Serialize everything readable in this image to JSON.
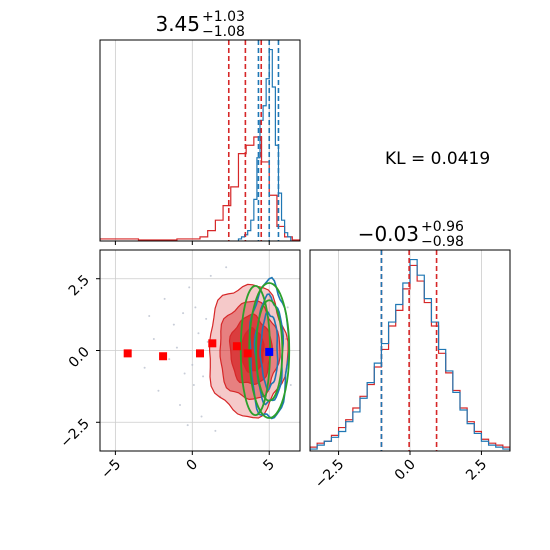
{
  "colors": {
    "red": "#d62728",
    "blue": "#1f77b4",
    "green": "#2ca02c",
    "grid": "#cccccc"
  },
  "annotation": {
    "kl_text": "KL = 0.0419"
  },
  "chart_data": [
    {
      "type": "histogram",
      "panel": "top-left",
      "title": {
        "value": "3.45",
        "upper": "+1.03",
        "lower": "−1.08"
      },
      "xlim": [
        -6,
        7
      ],
      "x_ticks": [
        -5,
        0,
        5
      ],
      "grid": true,
      "quantile_lines": {
        "red": [
          2.37,
          3.45,
          4.48
        ],
        "blue": [
          4.3,
          5.0,
          5.6
        ]
      },
      "series": [
        {
          "color": "red",
          "bin_edges": [
            -6,
            -5.5,
            -5,
            -4.5,
            -4,
            -3.5,
            -3,
            -2.5,
            -2,
            -1.5,
            -1,
            -0.5,
            0,
            0.5,
            1,
            1.5,
            2,
            2.5,
            3,
            3.5,
            4,
            4.5,
            5,
            5.5,
            6,
            6.5,
            7
          ],
          "counts": [
            0.01,
            0.01,
            0.01,
            0.01,
            0.01,
            0.005,
            0.005,
            0.005,
            0.005,
            0.005,
            0.01,
            0.01,
            0.01,
            0.02,
            0.05,
            0.1,
            0.17,
            0.26,
            0.42,
            0.46,
            0.5,
            0.38,
            0.22,
            0.07,
            0.02,
            0.005
          ]
        },
        {
          "color": "blue",
          "bin_edges": [
            3.0,
            3.2,
            3.4,
            3.6,
            3.8,
            4.0,
            4.2,
            4.4,
            4.6,
            4.8,
            5.0,
            5.2,
            5.4,
            5.6,
            5.8,
            6.0,
            6.2,
            6.4
          ],
          "counts": [
            0.01,
            0.02,
            0.03,
            0.05,
            0.1,
            0.2,
            0.4,
            0.58,
            0.65,
            0.78,
            0.92,
            0.74,
            0.46,
            0.23,
            0.1,
            0.04,
            0.02
          ]
        }
      ]
    },
    {
      "type": "histogram",
      "panel": "bottom-right",
      "title": {
        "value": "−0.03",
        "upper": "+0.96",
        "lower": "−0.98"
      },
      "xlim": [
        -3.5,
        3.5
      ],
      "x_ticks": [
        -2.5,
        0.0,
        2.5
      ],
      "x_tick_labels": [
        "−2.5",
        "0.0",
        "2.5"
      ],
      "grid": true,
      "quantile_lines": {
        "red": [
          -1.0,
          -0.03,
          0.93
        ],
        "blue": [
          -1.0
        ]
      },
      "series": [
        {
          "color": "red",
          "bin_edges": [
            -3.5,
            -3.25,
            -3,
            -2.75,
            -2.5,
            -2.25,
            -2,
            -1.75,
            -1.5,
            -1.25,
            -1,
            -0.75,
            -0.5,
            -0.25,
            0,
            0.25,
            0.5,
            0.75,
            1,
            1.25,
            1.5,
            1.75,
            2,
            2.25,
            2.5,
            2.75,
            3,
            3.25,
            3.5
          ],
          "counts": [
            0.02,
            0.04,
            0.05,
            0.08,
            0.12,
            0.16,
            0.22,
            0.28,
            0.34,
            0.43,
            0.52,
            0.64,
            0.72,
            0.83,
            0.95,
            0.87,
            0.76,
            0.64,
            0.5,
            0.4,
            0.31,
            0.22,
            0.15,
            0.1,
            0.06,
            0.04,
            0.03,
            0.02
          ]
        },
        {
          "color": "blue",
          "bin_edges": [
            -3.5,
            -3.25,
            -3,
            -2.75,
            -2.5,
            -2.25,
            -2,
            -1.75,
            -1.5,
            -1.25,
            -1,
            -0.75,
            -0.5,
            -0.25,
            0,
            0.25,
            0.5,
            0.75,
            1,
            1.25,
            1.5,
            1.75,
            2,
            2.25,
            2.5,
            2.75,
            3,
            3.25,
            3.5
          ],
          "counts": [
            0.01,
            0.03,
            0.05,
            0.07,
            0.1,
            0.15,
            0.2,
            0.27,
            0.35,
            0.45,
            0.55,
            0.66,
            0.75,
            0.86,
            0.98,
            0.9,
            0.78,
            0.66,
            0.52,
            0.41,
            0.3,
            0.21,
            0.14,
            0.09,
            0.05,
            0.03,
            0.02,
            0.01
          ]
        }
      ]
    },
    {
      "type": "contour",
      "panel": "bottom-left",
      "xlim": [
        -6,
        7
      ],
      "ylim": [
        -3.5,
        3.5
      ],
      "x_ticks": [
        -5,
        0,
        5
      ],
      "x_tick_labels": [
        "−5",
        "0",
        "5"
      ],
      "y_ticks": [
        -2.5,
        0.0,
        2.5
      ],
      "y_tick_labels": [
        "−2.5",
        "0.0",
        "2.5"
      ],
      "grid": true,
      "red_filled_levels": [
        {
          "cx": 3.6,
          "cy": 0.0,
          "rx": 2.55,
          "ry": 2.3,
          "opacity": 0.25
        },
        {
          "cx": 3.7,
          "cy": 0.0,
          "rx": 1.95,
          "ry": 1.7,
          "opacity": 0.45
        },
        {
          "cx": 3.8,
          "cy": 0.0,
          "rx": 1.35,
          "ry": 1.2,
          "opacity": 0.75
        },
        {
          "cx": 3.9,
          "cy": 0.0,
          "rx": 0.75,
          "ry": 0.75,
          "opacity": 0.9
        }
      ],
      "blue_levels": [
        {
          "cx": 5.0,
          "cy": 0.0,
          "rx": 1.25,
          "ry": 2.4
        },
        {
          "cx": 5.0,
          "cy": 0.0,
          "rx": 0.9,
          "ry": 1.85
        },
        {
          "cx": 5.0,
          "cy": 0.0,
          "rx": 0.55,
          "ry": 1.3
        }
      ],
      "green_ellipses": [
        {
          "cx": 5.0,
          "cy": 0.0,
          "rx": 1.3,
          "ry": 2.35
        },
        {
          "cx": 5.0,
          "cy": 0.0,
          "rx": 0.85,
          "ry": 1.75
        },
        {
          "cx": 4.1,
          "cy": 0.0,
          "rx": 0.95,
          "ry": 2.25
        }
      ],
      "red_squares": [
        {
          "x": -4.2,
          "y": -0.1
        },
        {
          "x": -1.9,
          "y": -0.2
        },
        {
          "x": 0.5,
          "y": -0.1
        },
        {
          "x": 1.3,
          "y": 0.25
        },
        {
          "x": 2.9,
          "y": 0.15
        },
        {
          "x": 3.6,
          "y": -0.1
        }
      ],
      "blue_square": {
        "x": 5.0,
        "y": -0.05
      },
      "scatter_points": [
        [
          -1.2,
          0.9
        ],
        [
          -0.5,
          -0.8
        ],
        [
          0.2,
          1.5
        ],
        [
          -2.5,
          0.4
        ],
        [
          -0.8,
          -1.9
        ],
        [
          0.6,
          -2.3
        ],
        [
          -1.8,
          1.8
        ],
        [
          1.2,
          2.6
        ],
        [
          0.1,
          -1.2
        ],
        [
          -3.1,
          -0.6
        ],
        [
          -0.2,
          2.2
        ],
        [
          1.5,
          -2.8
        ],
        [
          -1.0,
          0.1
        ],
        [
          0.9,
          1.1
        ],
        [
          -2.2,
          -1.4
        ],
        [
          0.4,
          0.6
        ],
        [
          -0.6,
          1.3
        ],
        [
          1.8,
          -1.6
        ],
        [
          -1.5,
          -0.3
        ],
        [
          0.0,
          -0.5
        ],
        [
          2.2,
          2.9
        ],
        [
          -2.8,
          1.2
        ],
        [
          0.7,
          -0.9
        ],
        [
          1.0,
          0.3
        ],
        [
          -0.3,
          -2.6
        ],
        [
          6.2,
          1.5
        ],
        [
          6.4,
          -1.2
        ],
        [
          6.1,
          0.4
        ]
      ]
    }
  ]
}
